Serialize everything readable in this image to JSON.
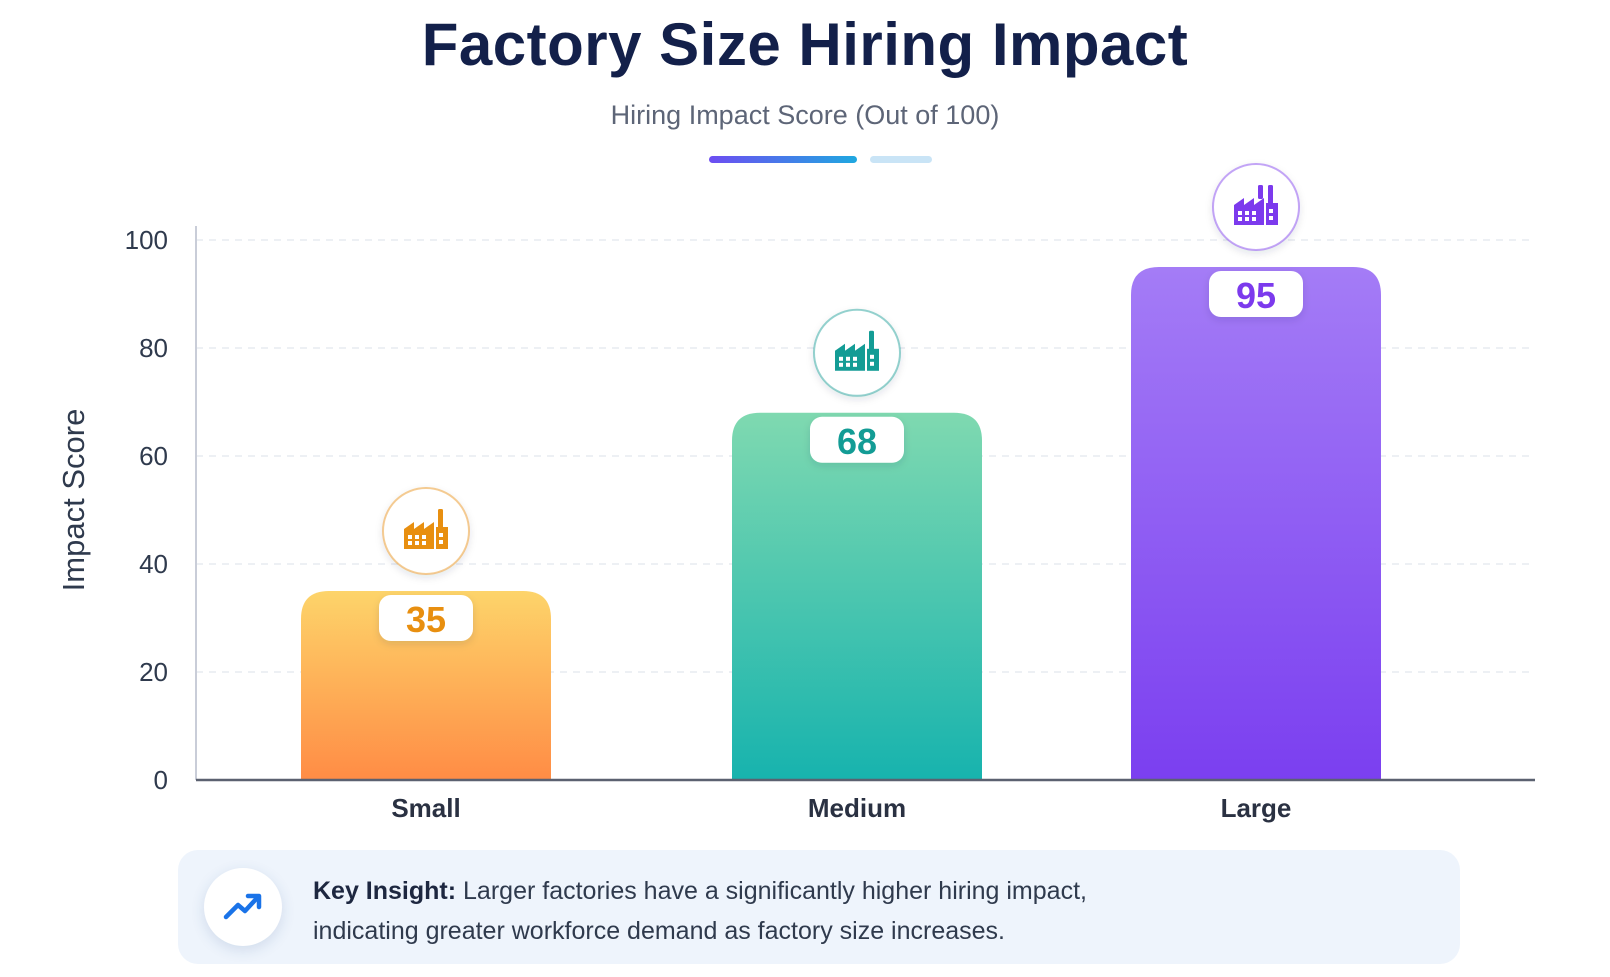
{
  "title": "Factory Size Hiring Impact",
  "subtitle": "Hiring Impact Score (Out of 100)",
  "chart_data": {
    "type": "bar",
    "categories": [
      "Small",
      "Medium",
      "Large"
    ],
    "values": [
      35,
      68,
      95
    ],
    "data_labels": [
      "35",
      "68",
      "95"
    ],
    "title": "Factory Size Hiring Impact",
    "subtitle": "Hiring Impact Score (Out of 100)",
    "xlabel": "",
    "ylabel": "Impact Score",
    "ylim": [
      0,
      100
    ],
    "yticks": [
      0,
      20,
      40,
      60,
      80,
      100
    ],
    "ytick_labels": [
      "0",
      "20",
      "40",
      "60",
      "80",
      "100"
    ],
    "grid": true,
    "legend": "none",
    "bar_colors": [
      {
        "top": "#fdd46a",
        "bottom": "#ff8c45",
        "label": "#e88f10"
      },
      {
        "top": "#7fd9b0",
        "bottom": "#17b3ae",
        "label": "#139c95"
      },
      {
        "top": "#a47cf6",
        "bottom": "#7b3ff0",
        "label": "#7c3aed"
      }
    ],
    "icons": [
      "small-factory-icon",
      "medium-factory-icon",
      "large-factory-icon"
    ]
  },
  "insight": {
    "icon": "trend-up-icon",
    "icon_color": "#1a73e8",
    "label": "Key Insight:",
    "line1": "Larger factories have a significantly higher hiring impact,",
    "line2": "indicating greater workforce demand as factory size increases."
  }
}
